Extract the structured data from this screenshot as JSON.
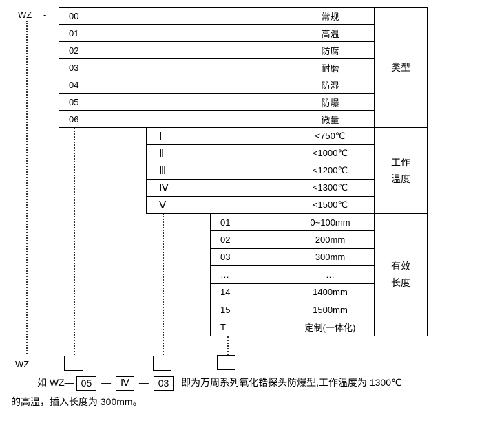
{
  "prefix": "WZ",
  "dash": "-",
  "type_table": {
    "category": "类型",
    "rows": [
      {
        "code": "00",
        "name": "常规"
      },
      {
        "code": "01",
        "name": "高温"
      },
      {
        "code": "02",
        "name": "防腐"
      },
      {
        "code": "03",
        "name": "耐磨"
      },
      {
        "code": "04",
        "name": "防湿"
      },
      {
        "code": "05",
        "name": "防爆"
      },
      {
        "code": "06",
        "name": "微量"
      }
    ]
  },
  "temp_table": {
    "category_line1": "工作",
    "category_line2": "温度",
    "rows": [
      {
        "code": "Ⅰ",
        "name": "<750℃"
      },
      {
        "code": "Ⅱ",
        "name": "<1000℃"
      },
      {
        "code": "Ⅲ",
        "name": "<1200℃"
      },
      {
        "code": "Ⅳ",
        "name": "<1300℃"
      },
      {
        "code": "Ⅴ",
        "name": "<1500℃"
      }
    ]
  },
  "length_table": {
    "category_line1": "有效",
    "category_line2": "长度",
    "rows": [
      {
        "code": "01",
        "name": "0~100mm"
      },
      {
        "code": "02",
        "name": "200mm"
      },
      {
        "code": "03",
        "name": "300mm"
      },
      {
        "code": "…",
        "name": "…"
      },
      {
        "code": "14",
        "name": "1400mm"
      },
      {
        "code": "15",
        "name": "1500mm"
      },
      {
        "code": "T",
        "name": "定制(一体化)"
      }
    ]
  },
  "example": {
    "lead": "如 WZ—",
    "box1": "05",
    "sep": "—",
    "box2": "Ⅳ",
    "box3": "03",
    "text1": "即为万周系列氧化锆探头防爆型,工作温度为 1300℃",
    "text2": "的高温，插入长度为 300mm。"
  }
}
